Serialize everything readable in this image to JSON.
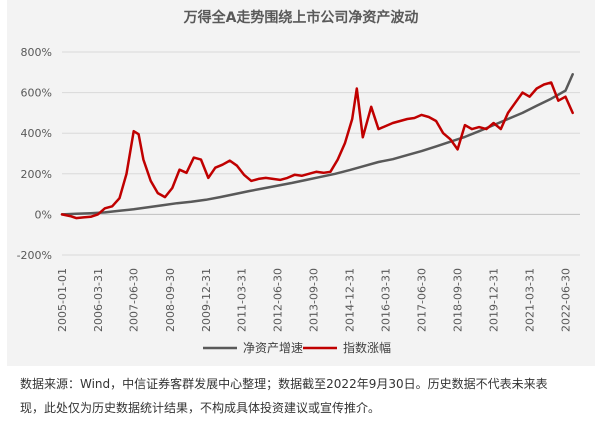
{
  "chart_data": {
    "type": "line",
    "title": "万得全A走势围绕上市公司净资产波动",
    "xlabel": "",
    "ylabel": "",
    "x_range": [
      "2005-01-01",
      "2022-12-31"
    ],
    "ylim": [
      -200,
      800
    ],
    "y_ticks": [
      -200,
      0,
      200,
      400,
      600,
      800
    ],
    "y_tick_labels": [
      "-200%",
      "0%",
      "200%",
      "400%",
      "600%",
      "800%"
    ],
    "x_tick_labels": [
      "2005-01-01",
      "2006-03-31",
      "2007-06-30",
      "2008-09-30",
      "2009-12-31",
      "2011-03-31",
      "2012-06-30",
      "2013-09-30",
      "2014-12-31",
      "2016-03-31",
      "2017-06-30",
      "2018-09-30",
      "2019-12-31",
      "2021-03-31",
      "2022-06-30"
    ],
    "gridlines": true,
    "legend_position": "bottom",
    "colors": {
      "series1": "#595959",
      "series2": "#c00000",
      "grid": "#d9d9d9",
      "background": "#f3f3f3"
    },
    "series": [
      {
        "name": "净资产增速",
        "x": [
          "2005-01-01",
          "2005-06-30",
          "2005-12-31",
          "2006-06-30",
          "2006-12-31",
          "2007-06-30",
          "2007-12-31",
          "2008-06-30",
          "2008-12-31",
          "2009-06-30",
          "2009-12-31",
          "2010-06-30",
          "2010-12-31",
          "2011-06-30",
          "2011-12-31",
          "2012-06-30",
          "2012-12-31",
          "2013-06-30",
          "2013-12-31",
          "2014-06-30",
          "2014-12-31",
          "2015-06-30",
          "2015-12-31",
          "2016-06-30",
          "2016-12-31",
          "2017-06-30",
          "2017-12-31",
          "2018-06-30",
          "2018-12-31",
          "2019-06-30",
          "2019-12-31",
          "2020-06-30",
          "2020-12-31",
          "2021-06-30",
          "2021-12-31",
          "2022-06-30",
          "2022-09-30"
        ],
        "values": [
          0,
          3,
          6,
          10,
          18,
          25,
          35,
          45,
          55,
          62,
          72,
          85,
          100,
          115,
          128,
          142,
          155,
          170,
          185,
          200,
          218,
          238,
          258,
          272,
          292,
          312,
          335,
          358,
          382,
          410,
          440,
          470,
          500,
          535,
          570,
          610,
          690
        ]
      },
      {
        "name": "指数涨幅",
        "x": [
          "2005-01-01",
          "2005-04-30",
          "2005-06-30",
          "2005-09-30",
          "2005-12-31",
          "2006-03-31",
          "2006-06-30",
          "2006-09-30",
          "2006-12-31",
          "2007-03-31",
          "2007-06-30",
          "2007-08-31",
          "2007-10-31",
          "2008-01-31",
          "2008-04-30",
          "2008-07-31",
          "2008-10-31",
          "2009-01-31",
          "2009-04-30",
          "2009-07-31",
          "2009-10-31",
          "2010-01-31",
          "2010-04-30",
          "2010-07-31",
          "2010-10-31",
          "2011-01-31",
          "2011-04-30",
          "2011-07-31",
          "2011-10-31",
          "2012-01-31",
          "2012-04-30",
          "2012-07-31",
          "2012-10-31",
          "2013-01-31",
          "2013-04-30",
          "2013-07-31",
          "2013-10-31",
          "2014-01-31",
          "2014-04-30",
          "2014-07-31",
          "2014-10-31",
          "2015-01-31",
          "2015-03-31",
          "2015-06-15",
          "2015-09-30",
          "2015-12-31",
          "2016-02-29",
          "2016-06-30",
          "2016-09-30",
          "2016-12-31",
          "2017-03-31",
          "2017-06-30",
          "2017-09-30",
          "2017-12-31",
          "2018-03-31",
          "2018-06-30",
          "2018-09-30",
          "2018-12-31",
          "2019-03-31",
          "2019-06-30",
          "2019-09-30",
          "2019-12-31",
          "2020-03-31",
          "2020-06-30",
          "2020-09-30",
          "2020-12-31",
          "2021-03-31",
          "2021-06-30",
          "2021-09-30",
          "2021-12-31",
          "2022-03-31",
          "2022-06-30",
          "2022-09-30"
        ],
        "values": [
          0,
          -10,
          -18,
          -15,
          -12,
          0,
          30,
          40,
          80,
          200,
          410,
          395,
          270,
          165,
          105,
          85,
          130,
          220,
          205,
          280,
          270,
          180,
          230,
          245,
          265,
          240,
          195,
          165,
          175,
          180,
          175,
          170,
          180,
          195,
          190,
          200,
          210,
          205,
          210,
          270,
          350,
          470,
          620,
          380,
          530,
          420,
          430,
          450,
          460,
          470,
          475,
          490,
          480,
          460,
          400,
          370,
          320,
          440,
          420,
          430,
          420,
          450,
          420,
          500,
          550,
          600,
          580,
          620,
          640,
          650,
          560,
          580,
          500
        ]
      }
    ]
  },
  "footnote": {
    "line1": "数据来源：Wind，中信证券客群发展中心整理；数据截至2022年9月30日。历史数据不代表未来表",
    "line2": "现，此处仅为历史数据统计结果，不构成具体投资建议或宣传推介。"
  }
}
